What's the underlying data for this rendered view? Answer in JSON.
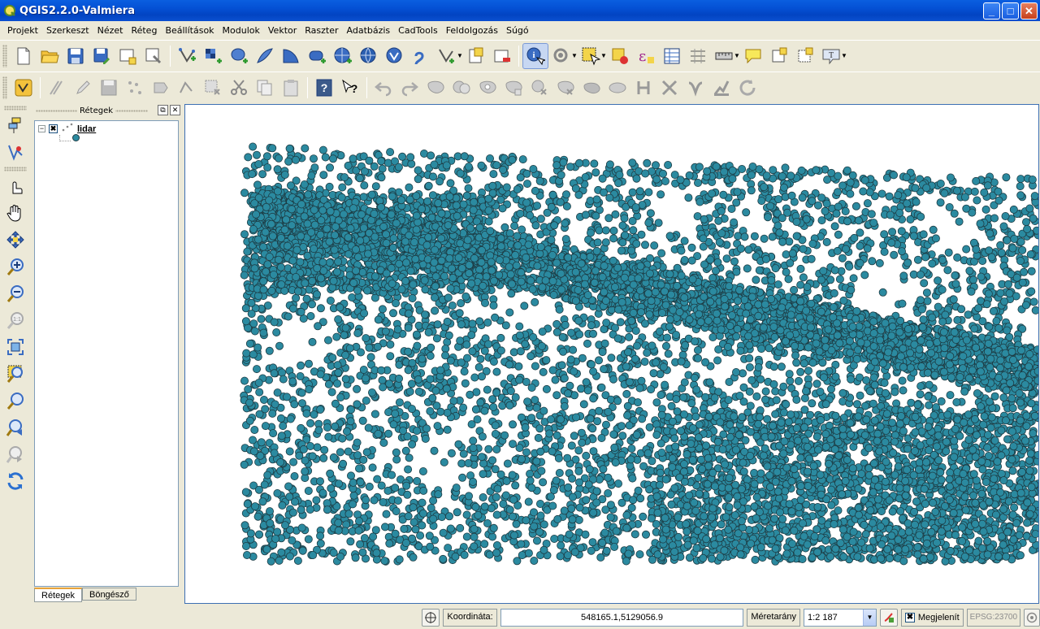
{
  "window": {
    "title": "QGIS2.2.0-Valmiera",
    "minimize": "_",
    "maximize": "□",
    "close": "✕"
  },
  "menu": [
    {
      "label": "Projekt"
    },
    {
      "label": "Szerkeszt"
    },
    {
      "label": "Nézet"
    },
    {
      "label": "Réteg"
    },
    {
      "label": "Beállítások"
    },
    {
      "label": "Modulok"
    },
    {
      "label": "Vektor"
    },
    {
      "label": "Raszter"
    },
    {
      "label": "Adatbázis"
    },
    {
      "label": "CadTools"
    },
    {
      "label": "Feldolgozás"
    },
    {
      "label": "Súgó"
    }
  ],
  "layers_panel": {
    "title": "Rétegek",
    "float_btn": "⧉",
    "close_btn": "✕",
    "layers": [
      {
        "name": "lidar",
        "visible": true,
        "symbol_color": "#2b8aa0"
      }
    ],
    "tabs": [
      {
        "label": "Rétegek",
        "active": true
      },
      {
        "label": "Böngésző",
        "active": false
      }
    ]
  },
  "map": {
    "point_fill": "#2b8aa0",
    "point_stroke": "#1d3c44",
    "background": "#ffffff"
  },
  "statusbar": {
    "coord_label": "Koordináta:",
    "coord_value": "548165.1,5129056.9",
    "scale_label": "Méretarány",
    "scale_value": "1:2 187",
    "render_label": "Megjelenít",
    "render_checked": true,
    "epsg": "EPSG:23700"
  },
  "colors": {
    "titlebar": "#0450d4",
    "chrome": "#ece9d8",
    "canvas_border": "#3d6fb3"
  }
}
